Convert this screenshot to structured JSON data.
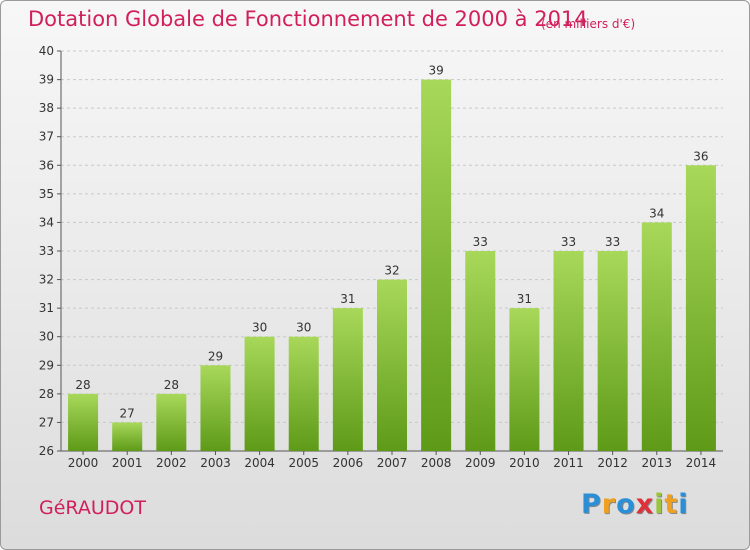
{
  "chart_data": {
    "type": "bar",
    "title": "Dotation Globale de Fonctionnement de 2000 à 2014",
    "subtitle": "(en milliers d'€)",
    "categories": [
      "2000",
      "2001",
      "2002",
      "2003",
      "2004",
      "2005",
      "2006",
      "2007",
      "2008",
      "2009",
      "2010",
      "2011",
      "2012",
      "2013",
      "2014"
    ],
    "values": [
      28,
      27,
      28,
      29,
      30,
      30,
      31,
      32,
      39,
      33,
      31,
      33,
      33,
      34,
      36
    ],
    "ylim": [
      26,
      40
    ],
    "yticks": [
      "26",
      "27",
      "28",
      "29",
      "30",
      "31",
      "32",
      "33",
      "34",
      "35",
      "36",
      "37",
      "38",
      "39",
      "40"
    ],
    "grid": true,
    "bar_color": "#7fba2e",
    "xlabel": "",
    "ylabel": ""
  },
  "commune": "GéRAUDOT",
  "logo": {
    "letters": [
      "P",
      "r",
      "o",
      "x",
      "i",
      "t",
      "i"
    ],
    "colors": [
      "#2a8fd6",
      "#f0a020",
      "#2a8fd6",
      "#e0303a",
      "#9ac43c",
      "#f0a020",
      "#2a8fd6"
    ]
  },
  "colors": {
    "title": "#d11f5c",
    "bar_light": "#a8d85a",
    "bar_dark": "#5e9a18"
  }
}
